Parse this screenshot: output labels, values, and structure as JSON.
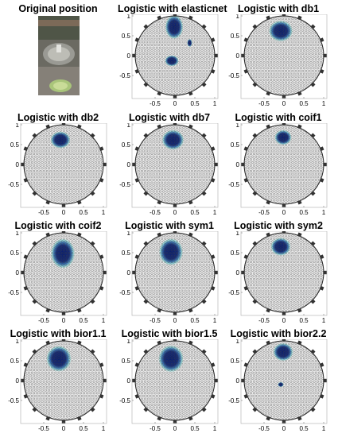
{
  "panels": [
    {
      "title": "Original position",
      "kind": "photo"
    },
    {
      "title": "Logistic with elasticnet",
      "kind": "plot",
      "blobs": [
        [
          -0.02,
          0.72,
          0.18,
          0.24
        ],
        [
          -0.08,
          -0.13,
          0.14,
          0.11
        ],
        [
          0.37,
          0.32,
          0.05,
          0.08
        ]
      ]
    },
    {
      "title": "Logistic with db1",
      "kind": "plot",
      "blobs": [
        [
          -0.08,
          0.62,
          0.24,
          0.21
        ]
      ]
    },
    {
      "title": "Logistic with db2",
      "kind": "plot",
      "blobs": [
        [
          -0.08,
          0.62,
          0.2,
          0.17
        ]
      ]
    },
    {
      "title": "Logistic with db7",
      "kind": "plot",
      "blobs": [
        [
          -0.05,
          0.62,
          0.22,
          0.2
        ]
      ]
    },
    {
      "title": "Logistic with coif1",
      "kind": "plot",
      "blobs": [
        [
          -0.02,
          0.68,
          0.17,
          0.15
        ]
      ]
    },
    {
      "title": "Logistic with coif2",
      "kind": "plot",
      "blobs": [
        [
          -0.02,
          0.48,
          0.24,
          0.3
        ]
      ]
    },
    {
      "title": "Logistic with sym1",
      "kind": "plot",
      "blobs": [
        [
          -0.1,
          0.52,
          0.24,
          0.27
        ]
      ]
    },
    {
      "title": "Logistic with sym2",
      "kind": "plot",
      "blobs": [
        [
          -0.08,
          0.65,
          0.2,
          0.18
        ]
      ]
    },
    {
      "title": "Logistic with bior1.1",
      "kind": "plot",
      "blobs": [
        [
          -0.12,
          0.55,
          0.25,
          0.26
        ]
      ]
    },
    {
      "title": "Logistic with bior1.5",
      "kind": "plot",
      "blobs": [
        [
          -0.1,
          0.55,
          0.25,
          0.27
        ]
      ]
    },
    {
      "title": "Logistic with bior2.2",
      "kind": "plot",
      "blobs": [
        [
          -0.02,
          0.72,
          0.2,
          0.18
        ],
        [
          -0.08,
          -0.1,
          0.06,
          0.05
        ]
      ]
    }
  ],
  "axes": {
    "xticks": [
      "-0.5",
      "0",
      "0.5",
      "1"
    ],
    "yticks": [
      "1",
      "0.5",
      "0",
      "-0.5"
    ]
  },
  "colors": {
    "mesh": "#444444",
    "hot": "#0a1f6e",
    "warm": "#2c6fb0",
    "cool": "#7fd3d0",
    "background": "#e8e8e8"
  }
}
